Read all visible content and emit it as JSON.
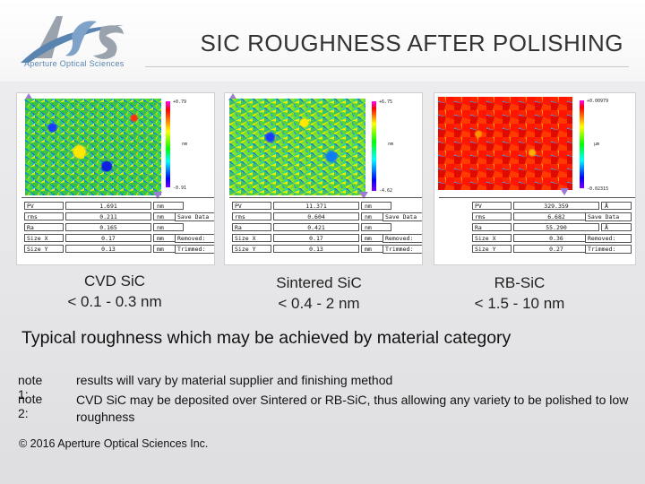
{
  "header": {
    "logo_text": "Aperture Optical Sciences",
    "title": "SIC ROUGHNESS AFTER POLISHING"
  },
  "panels": [
    {
      "scale_max": "+0.79",
      "scale_unit": "nm",
      "scale_min": "-0.91",
      "stats": [
        {
          "key": "PV",
          "value": "1.691",
          "unit": "nm"
        },
        {
          "key": "rms",
          "value": "0.211",
          "unit": "nm"
        },
        {
          "key": "Ra",
          "value": "0.165",
          "unit": "nm"
        },
        {
          "key": "Size X",
          "value": "0.17",
          "unit": "mm"
        },
        {
          "key": "Size Y",
          "value": "0.13",
          "unit": "mm"
        }
      ],
      "save": "Save Data",
      "removed": "Removed:",
      "trimmed": "Trimmed:",
      "caption_line1": "CVD SiC",
      "caption_line2": "< 0.1 - 0.3 nm"
    },
    {
      "scale_max": "+6.75",
      "scale_unit": "nm",
      "scale_min": "-4.62",
      "stats": [
        {
          "key": "PV",
          "value": "11.371",
          "unit": "nm"
        },
        {
          "key": "rms",
          "value": "0.604",
          "unit": "nm"
        },
        {
          "key": "Ra",
          "value": "0.421",
          "unit": "nm"
        },
        {
          "key": "Size X",
          "value": "0.17",
          "unit": "mm"
        },
        {
          "key": "Size Y",
          "value": "0.13",
          "unit": "mm"
        }
      ],
      "save": "Save Data",
      "removed": "Removed:",
      "trimmed": "Trimmed:",
      "caption_line1": "Sintered SiC",
      "caption_line2": "< 0.4 - 2 nm"
    },
    {
      "scale_max": "+0.00979",
      "scale_unit": "µm",
      "scale_min": "-0.02315",
      "stats": [
        {
          "key": "PV",
          "value": "329.359",
          "unit": "Å"
        },
        {
          "key": "rms",
          "value": "6.682",
          "unit": "nm"
        },
        {
          "key": "Ra",
          "value": "55.290",
          "unit": "Å"
        },
        {
          "key": "Size X",
          "value": "0.36",
          "unit": "mm"
        },
        {
          "key": "Size Y",
          "value": "0.27",
          "unit": "mm"
        }
      ],
      "save": "Save Data",
      "removed": "Removed:",
      "trimmed": "Trimmed:",
      "caption_line1": "RB-SiC",
      "caption_line2": "< 1.5 - 10 nm"
    }
  ],
  "subtitle": "Typical roughness which may be achieved by material category",
  "notes": [
    {
      "label": "note 1:",
      "text": "results will vary by material supplier and finishing method"
    },
    {
      "label": "note 2:",
      "text": "CVD SiC may be deposited over Sintered or RB-SiC, thus allowing any variety to be polished to low roughness"
    }
  ],
  "copyright": "© 2016 Aperture Optical Sciences Inc.",
  "colors": {
    "title": "#333333",
    "logo_blue": "#5a84b0",
    "logo_gray": "#9aa3ad"
  }
}
